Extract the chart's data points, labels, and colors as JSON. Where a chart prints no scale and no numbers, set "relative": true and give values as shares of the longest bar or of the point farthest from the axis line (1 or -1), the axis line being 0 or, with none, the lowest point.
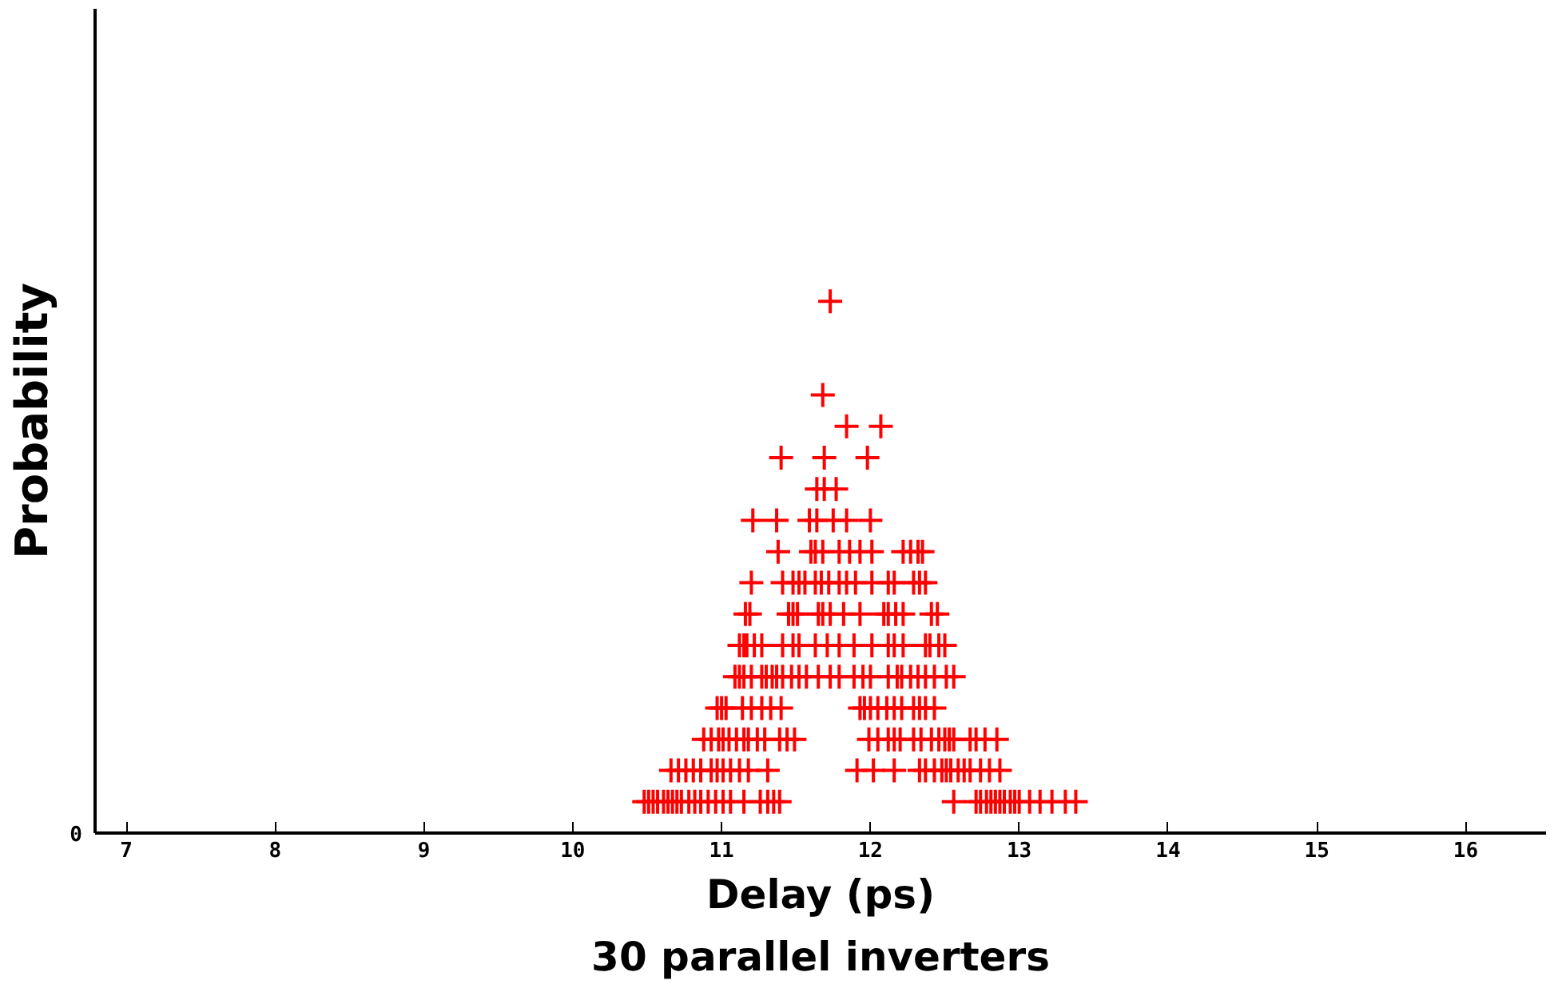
{
  "chart_data": {
    "type": "scatter",
    "xlabel": "Delay (ps)",
    "ylabel": "Probability",
    "annotations": [
      "30 parallel inverters",
      "0"
    ],
    "relative": true,
    "xlim": [
      6.79,
      16.54
    ],
    "xticks": [
      7,
      8,
      9,
      10,
      11,
      12,
      13,
      14,
      15,
      16
    ],
    "grid": false,
    "marker": "cross",
    "series": [
      {
        "color": "#ff0000",
        "x": [
          10.48,
          10.51,
          10.54,
          10.57,
          10.61,
          10.64,
          10.67,
          10.7,
          10.73,
          10.78,
          10.82,
          10.86,
          10.91,
          10.96,
          11.01,
          11.06,
          11.15,
          11.26,
          11.31,
          11.35,
          11.39,
          12.56,
          12.71,
          12.74,
          12.78,
          12.81,
          12.84,
          12.87,
          12.9,
          12.94,
          12.97,
          13.0,
          13.07,
          13.14,
          13.22,
          13.31,
          13.38,
          10.66,
          10.71,
          10.76,
          10.81,
          10.86,
          10.93,
          10.97,
          11.01,
          11.06,
          11.12,
          11.18,
          11.31,
          11.91,
          12.02,
          12.16,
          12.33,
          12.37,
          12.43,
          12.48,
          12.51,
          12.54,
          12.59,
          12.63,
          12.67,
          12.74,
          12.8,
          12.87,
          10.88,
          10.93,
          10.98,
          11.01,
          11.05,
          11.1,
          11.15,
          11.18,
          11.24,
          11.29,
          11.39,
          11.44,
          11.49,
          11.99,
          12.05,
          12.12,
          12.16,
          12.2,
          12.29,
          12.34,
          12.41,
          12.46,
          12.5,
          12.53,
          12.56,
          12.67,
          12.71,
          12.77,
          12.85,
          10.97,
          11.0,
          11.03,
          11.14,
          11.2,
          11.27,
          11.33,
          11.4,
          11.93,
          11.96,
          12.0,
          12.05,
          12.11,
          12.16,
          12.21,
          12.29,
          12.33,
          12.37,
          12.43,
          11.09,
          11.12,
          11.15,
          11.2,
          11.27,
          11.3,
          11.34,
          11.37,
          11.41,
          11.47,
          11.52,
          11.57,
          11.65,
          11.73,
          11.79,
          11.89,
          11.95,
          12.0,
          12.12,
          12.18,
          12.21,
          12.27,
          12.32,
          12.37,
          12.43,
          12.51,
          12.56,
          11.12,
          11.15,
          11.17,
          11.22,
          11.27,
          11.41,
          11.48,
          11.52,
          11.63,
          11.71,
          11.79,
          11.89,
          12.01,
          12.12,
          12.16,
          12.22,
          12.37,
          12.4,
          12.46,
          12.5,
          11.16,
          11.19,
          11.45,
          11.48,
          11.51,
          11.65,
          11.68,
          11.73,
          11.82,
          11.93,
          12.09,
          12.12,
          12.17,
          12.22,
          12.41,
          12.45,
          11.2,
          11.41,
          11.48,
          11.52,
          11.56,
          11.63,
          11.67,
          11.72,
          11.79,
          11.84,
          11.9,
          12.01,
          12.12,
          12.16,
          12.29,
          12.33,
          12.37,
          11.38,
          11.6,
          11.63,
          11.68,
          11.79,
          11.86,
          11.93,
          12.01,
          12.22,
          12.27,
          12.32,
          12.35,
          11.21,
          11.37,
          11.59,
          11.64,
          11.75,
          11.84,
          12.0,
          11.64,
          11.69,
          11.77,
          11.4,
          11.69,
          11.98,
          11.84,
          12.07,
          11.68,
          11.73
        ],
        "values": [
          0.059,
          0.059,
          0.059,
          0.059,
          0.059,
          0.059,
          0.059,
          0.059,
          0.059,
          0.059,
          0.059,
          0.059,
          0.059,
          0.059,
          0.059,
          0.059,
          0.059,
          0.059,
          0.059,
          0.059,
          0.059,
          0.059,
          0.059,
          0.059,
          0.059,
          0.059,
          0.059,
          0.059,
          0.059,
          0.059,
          0.059,
          0.059,
          0.059,
          0.059,
          0.059,
          0.059,
          0.059,
          0.118,
          0.118,
          0.118,
          0.118,
          0.118,
          0.118,
          0.118,
          0.118,
          0.118,
          0.118,
          0.118,
          0.118,
          0.118,
          0.118,
          0.118,
          0.118,
          0.118,
          0.118,
          0.118,
          0.118,
          0.118,
          0.118,
          0.118,
          0.118,
          0.118,
          0.118,
          0.118,
          0.176,
          0.176,
          0.176,
          0.176,
          0.176,
          0.176,
          0.176,
          0.176,
          0.176,
          0.176,
          0.176,
          0.176,
          0.176,
          0.176,
          0.176,
          0.176,
          0.176,
          0.176,
          0.176,
          0.176,
          0.176,
          0.176,
          0.176,
          0.176,
          0.176,
          0.176,
          0.176,
          0.176,
          0.176,
          0.235,
          0.235,
          0.235,
          0.235,
          0.235,
          0.235,
          0.235,
          0.235,
          0.235,
          0.235,
          0.235,
          0.235,
          0.235,
          0.235,
          0.235,
          0.235,
          0.235,
          0.235,
          0.235,
          0.294,
          0.294,
          0.294,
          0.294,
          0.294,
          0.294,
          0.294,
          0.294,
          0.294,
          0.294,
          0.294,
          0.294,
          0.294,
          0.294,
          0.294,
          0.294,
          0.294,
          0.294,
          0.294,
          0.294,
          0.294,
          0.294,
          0.294,
          0.294,
          0.294,
          0.294,
          0.294,
          0.353,
          0.353,
          0.353,
          0.353,
          0.353,
          0.353,
          0.353,
          0.353,
          0.353,
          0.353,
          0.353,
          0.353,
          0.353,
          0.353,
          0.353,
          0.353,
          0.353,
          0.353,
          0.353,
          0.353,
          0.412,
          0.412,
          0.412,
          0.412,
          0.412,
          0.412,
          0.412,
          0.412,
          0.412,
          0.412,
          0.412,
          0.412,
          0.412,
          0.412,
          0.412,
          0.412,
          0.471,
          0.471,
          0.471,
          0.471,
          0.471,
          0.471,
          0.471,
          0.471,
          0.471,
          0.471,
          0.471,
          0.471,
          0.471,
          0.471,
          0.471,
          0.471,
          0.471,
          0.529,
          0.529,
          0.529,
          0.529,
          0.529,
          0.529,
          0.529,
          0.529,
          0.529,
          0.529,
          0.529,
          0.529,
          0.588,
          0.588,
          0.588,
          0.588,
          0.588,
          0.588,
          0.588,
          0.647,
          0.647,
          0.647,
          0.706,
          0.706,
          0.706,
          0.765,
          0.765,
          0.824,
          1
        ]
      }
    ]
  }
}
